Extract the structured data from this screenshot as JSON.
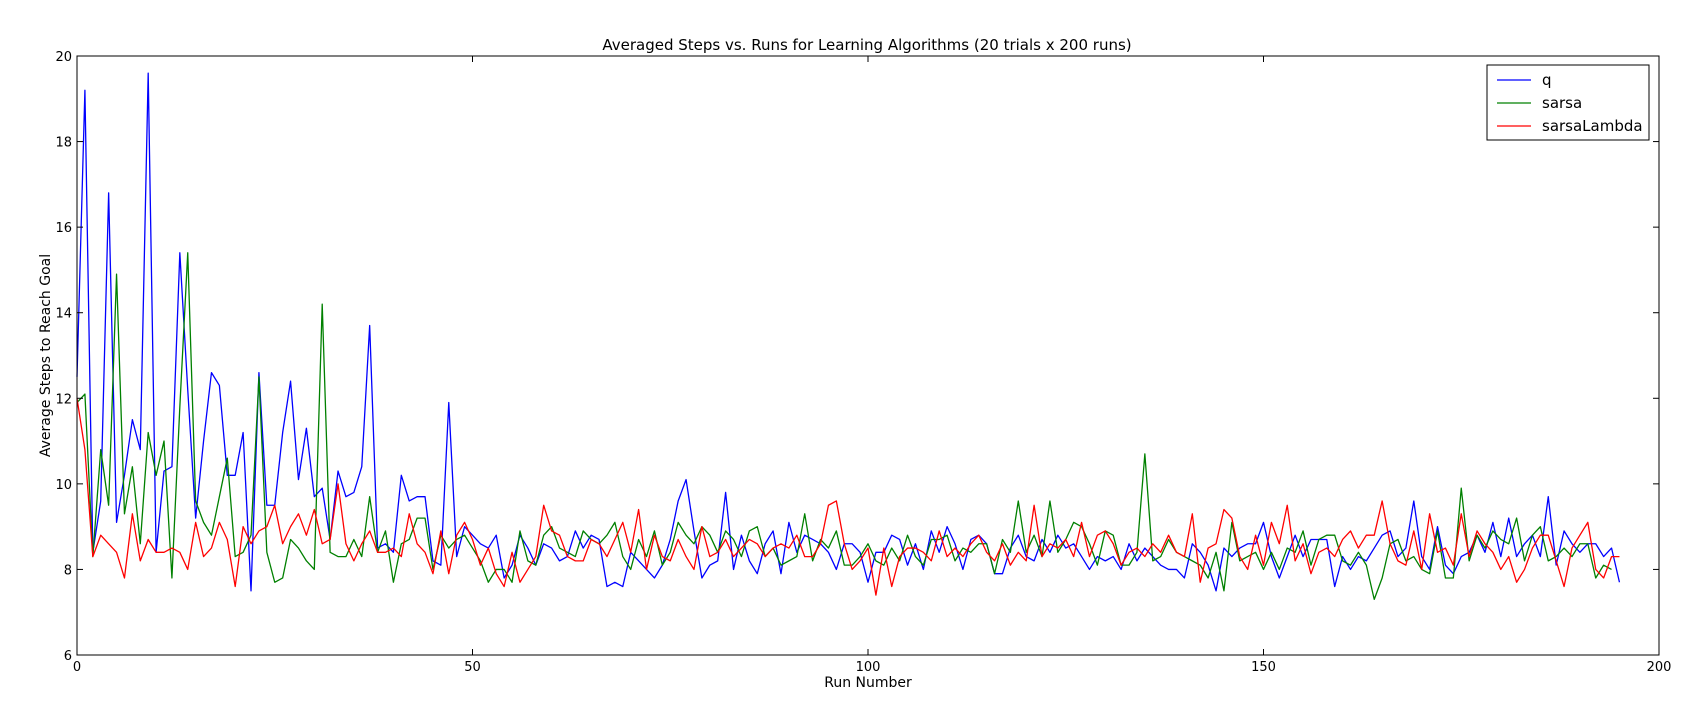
{
  "chart_data": {
    "type": "line",
    "title": "Averaged Steps vs. Runs for Learning Algorithms (20 trials x 200 runs)",
    "xlabel": "Run Number",
    "ylabel": "Average Steps to Reach Goal",
    "xlim": [
      0,
      200
    ],
    "ylim": [
      6,
      20
    ],
    "xticks": [
      0,
      50,
      100,
      150,
      200
    ],
    "yticks": [
      6,
      8,
      10,
      12,
      14,
      16,
      18,
      20
    ],
    "grid": false,
    "legend_position": "top-right",
    "series": [
      {
        "name": "q",
        "color": "#0000ff",
        "values": [
          12.5,
          19.2,
          8.4,
          9.6,
          16.8,
          9.1,
          10.2,
          11.5,
          10.8,
          19.6,
          8.4,
          10.3,
          10.4,
          15.4,
          12.2,
          9.2,
          11.0,
          12.6,
          12.3,
          10.2,
          10.2,
          11.2,
          7.5,
          12.6,
          9.5,
          9.5,
          11.2,
          12.4,
          10.1,
          11.3,
          9.7,
          9.9,
          8.7,
          10.3,
          9.7,
          9.8,
          10.4,
          13.7,
          8.5,
          8.6,
          8.4,
          10.2,
          9.6,
          9.7,
          9.7,
          8.2,
          8.1,
          11.9,
          8.3,
          9.0,
          8.8,
          8.6,
          8.5,
          8.8,
          7.8,
          8.1,
          8.8,
          8.5,
          8.1,
          8.6,
          8.5,
          8.2,
          8.3,
          8.9,
          8.5,
          8.8,
          8.7,
          7.6,
          7.7,
          7.6,
          8.4,
          8.2,
          8.0,
          7.8,
          8.1,
          8.7,
          9.6,
          10.1,
          8.9,
          7.8,
          8.1,
          8.2,
          9.8,
          8.0,
          8.8,
          8.2,
          7.9,
          8.6,
          8.9,
          7.9,
          9.1,
          8.4,
          8.8,
          8.7,
          8.6,
          8.4,
          8.0,
          8.6,
          8.6,
          8.4,
          7.7,
          8.4,
          8.4,
          8.8,
          8.7,
          8.1,
          8.6,
          8.0,
          8.9,
          8.4,
          9.0,
          8.6,
          8.0,
          8.7,
          8.8,
          8.6,
          7.9,
          7.9,
          8.5,
          8.8,
          8.3,
          8.2,
          8.7,
          8.4,
          8.8,
          8.5,
          8.6,
          8.3,
          8.0,
          8.3,
          8.2,
          8.3,
          8.0,
          8.6,
          8.2,
          8.5,
          8.3,
          8.1,
          8.0,
          8.0,
          7.8,
          8.6,
          8.4,
          8.1,
          7.5,
          8.5,
          8.3,
          8.5,
          8.6,
          8.6,
          9.1,
          8.3,
          7.8,
          8.3,
          8.8,
          8.3,
          8.7,
          8.7,
          8.7,
          7.6,
          8.3,
          8.0,
          8.3,
          8.2,
          8.5,
          8.8,
          8.9,
          8.3,
          8.5,
          9.6,
          8.3,
          8.0,
          9.0,
          8.1,
          7.9,
          8.3,
          8.4,
          8.8,
          8.4,
          9.1,
          8.3,
          9.2,
          8.3,
          8.6,
          8.8,
          8.3,
          9.7,
          8.1,
          8.9,
          8.6,
          8.4,
          8.6,
          8.6,
          8.3,
          8.5,
          7.7
        ]
      },
      {
        "name": "sarsa",
        "color": "#008000",
        "values": [
          11.9,
          12.1,
          8.3,
          10.8,
          9.5,
          14.9,
          9.3,
          10.4,
          8.6,
          11.2,
          10.2,
          11.0,
          7.8,
          11.8,
          15.4,
          9.6,
          9.1,
          8.8,
          9.7,
          10.6,
          8.3,
          8.4,
          8.8,
          12.5,
          8.4,
          7.7,
          7.8,
          8.7,
          8.5,
          8.2,
          8.0,
          14.2,
          8.4,
          8.3,
          8.3,
          8.7,
          8.3,
          9.7,
          8.4,
          8.9,
          7.7,
          8.6,
          8.7,
          9.2,
          9.2,
          8.0,
          8.8,
          8.5,
          8.7,
          8.8,
          8.5,
          8.2,
          7.7,
          8.0,
          8.0,
          7.7,
          8.9,
          8.2,
          8.1,
          8.8,
          9.0,
          8.5,
          8.4,
          8.3,
          8.9,
          8.7,
          8.6,
          8.8,
          9.1,
          8.3,
          8.0,
          8.7,
          8.3,
          8.9,
          8.1,
          8.4,
          9.1,
          8.8,
          8.6,
          9.0,
          8.8,
          8.4,
          8.9,
          8.7,
          8.3,
          8.9,
          9.0,
          8.3,
          8.5,
          8.1,
          8.2,
          8.3,
          9.3,
          8.2,
          8.7,
          8.5,
          8.9,
          8.1,
          8.1,
          8.3,
          8.6,
          8.2,
          8.1,
          8.5,
          8.2,
          8.8,
          8.3,
          8.1,
          8.7,
          8.7,
          8.8,
          8.2,
          8.5,
          8.4,
          8.6,
          8.6,
          7.9,
          8.7,
          8.4,
          9.6,
          8.4,
          8.8,
          8.3,
          9.6,
          8.4,
          8.7,
          9.1,
          9.0,
          8.6,
          8.1,
          8.9,
          8.8,
          8.1,
          8.1,
          8.4,
          10.7,
          8.2,
          8.3,
          8.7,
          8.4,
          8.3,
          8.2,
          8.1,
          7.8,
          8.4,
          7.5,
          9.1,
          8.2,
          8.3,
          8.4,
          8.0,
          8.4,
          8.0,
          8.5,
          8.4,
          8.9,
          8.1,
          8.7,
          8.8,
          8.8,
          8.2,
          8.1,
          8.4,
          8.1,
          7.3,
          7.8,
          8.6,
          8.7,
          8.2,
          8.3,
          8.0,
          7.9,
          8.9,
          7.8,
          7.8,
          9.9,
          8.2,
          8.8,
          8.5,
          8.9,
          8.7,
          8.6,
          9.2,
          8.2,
          8.8,
          9.0,
          8.2,
          8.3,
          8.5,
          8.3,
          8.6,
          8.6,
          7.8,
          8.1,
          8.0
        ]
      },
      {
        "name": "sarsaLambda",
        "color": "#ff0000",
        "values": [
          12.0,
          10.8,
          8.3,
          8.8,
          8.6,
          8.4,
          7.8,
          9.3,
          8.2,
          8.7,
          8.4,
          8.4,
          8.5,
          8.4,
          8.0,
          9.1,
          8.3,
          8.5,
          9.1,
          8.7,
          7.6,
          9.0,
          8.6,
          8.9,
          9.0,
          9.5,
          8.6,
          9.0,
          9.3,
          8.8,
          9.4,
          8.6,
          8.7,
          10.0,
          8.6,
          8.2,
          8.6,
          8.9,
          8.4,
          8.4,
          8.5,
          8.3,
          9.3,
          8.6,
          8.4,
          7.9,
          8.9,
          7.9,
          8.8,
          9.1,
          8.7,
          8.1,
          8.5,
          7.9,
          7.6,
          8.4,
          7.7,
          8.0,
          8.3,
          9.5,
          8.9,
          8.8,
          8.3,
          8.2,
          8.2,
          8.7,
          8.6,
          8.3,
          8.7,
          9.1,
          8.4,
          9.4,
          8.0,
          8.8,
          8.3,
          8.2,
          8.7,
          8.3,
          8.0,
          9.0,
          8.3,
          8.4,
          8.7,
          8.3,
          8.5,
          8.7,
          8.6,
          8.3,
          8.5,
          8.6,
          8.5,
          8.8,
          8.3,
          8.3,
          8.6,
          9.5,
          9.6,
          8.6,
          8.0,
          8.2,
          8.5,
          7.4,
          8.5,
          7.6,
          8.3,
          8.5,
          8.5,
          8.4,
          8.2,
          8.9,
          8.3,
          8.5,
          8.3,
          8.6,
          8.8,
          8.4,
          8.2,
          8.6,
          8.1,
          8.4,
          8.2,
          9.5,
          8.3,
          8.6,
          8.5,
          8.7,
          8.3,
          9.1,
          8.3,
          8.8,
          8.9,
          8.6,
          8.1,
          8.4,
          8.5,
          8.3,
          8.6,
          8.4,
          8.8,
          8.4,
          8.3,
          9.3,
          7.7,
          8.5,
          8.6,
          9.4,
          9.2,
          8.3,
          8.0,
          8.8,
          8.1,
          9.1,
          8.6,
          9.5,
          8.2,
          8.6,
          7.9,
          8.4,
          8.5,
          8.3,
          8.7,
          8.9,
          8.5,
          8.8,
          8.8,
          9.6,
          8.6,
          8.2,
          8.1,
          8.9,
          8.0,
          9.3,
          8.4,
          8.5,
          8.1,
          9.3,
          8.3,
          8.9,
          8.6,
          8.4,
          8.0,
          8.3,
          7.7,
          8.0,
          8.5,
          8.8,
          8.8,
          8.2,
          7.6,
          8.5,
          8.8,
          9.1,
          8.0,
          7.8,
          8.3,
          8.3
        ]
      }
    ]
  }
}
